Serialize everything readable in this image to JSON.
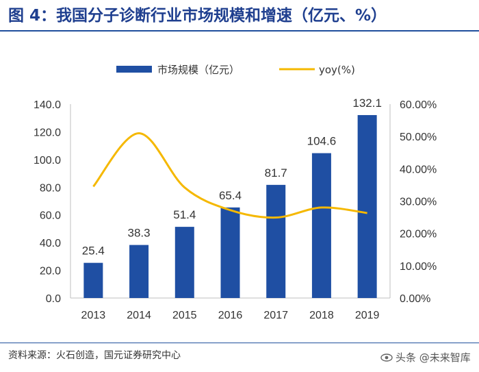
{
  "figure": {
    "title": "图 4：我国分子诊断行业市场规模和增速（亿元、%）",
    "source": "资料来源：火石创造，国元证券研究中心",
    "watermark": "头条 @未来智库"
  },
  "colors": {
    "title": "#1f3f8f",
    "bar": "#1f4fa3",
    "line": "#f5b800",
    "axis": "#bfbfbf"
  },
  "chart_data": {
    "type": "bar",
    "title": "",
    "categories": [
      "2013",
      "2014",
      "2015",
      "2016",
      "2017",
      "2018",
      "2019"
    ],
    "series": [
      {
        "name": "市场规模（亿元）",
        "type": "bar",
        "axis": "left",
        "values": [
          25.4,
          38.3,
          51.4,
          65.4,
          81.7,
          104.6,
          132.1
        ],
        "labels": [
          "25.4",
          "38.3",
          "51.4",
          "65.4",
          "81.7",
          "104.6",
          "132.1"
        ]
      },
      {
        "name": "yoy(%)",
        "type": "line",
        "axis": "right",
        "values": [
          34.5,
          51.0,
          34.2,
          27.2,
          24.9,
          28.0,
          26.3
        ]
      }
    ],
    "y_left": {
      "ylim": [
        0,
        140
      ],
      "ticks": [
        "0.0",
        "20.0",
        "40.0",
        "60.0",
        "80.0",
        "100.0",
        "120.0",
        "140.0"
      ]
    },
    "y_right": {
      "ylim": [
        0,
        60
      ],
      "ticks": [
        "0.00%",
        "10.00%",
        "20.00%",
        "30.00%",
        "40.00%",
        "50.00%",
        "60.00%"
      ]
    },
    "legend": {
      "position": "top-center",
      "entries": [
        "市场规模（亿元）",
        "yoy(%)"
      ]
    },
    "grid": false
  }
}
